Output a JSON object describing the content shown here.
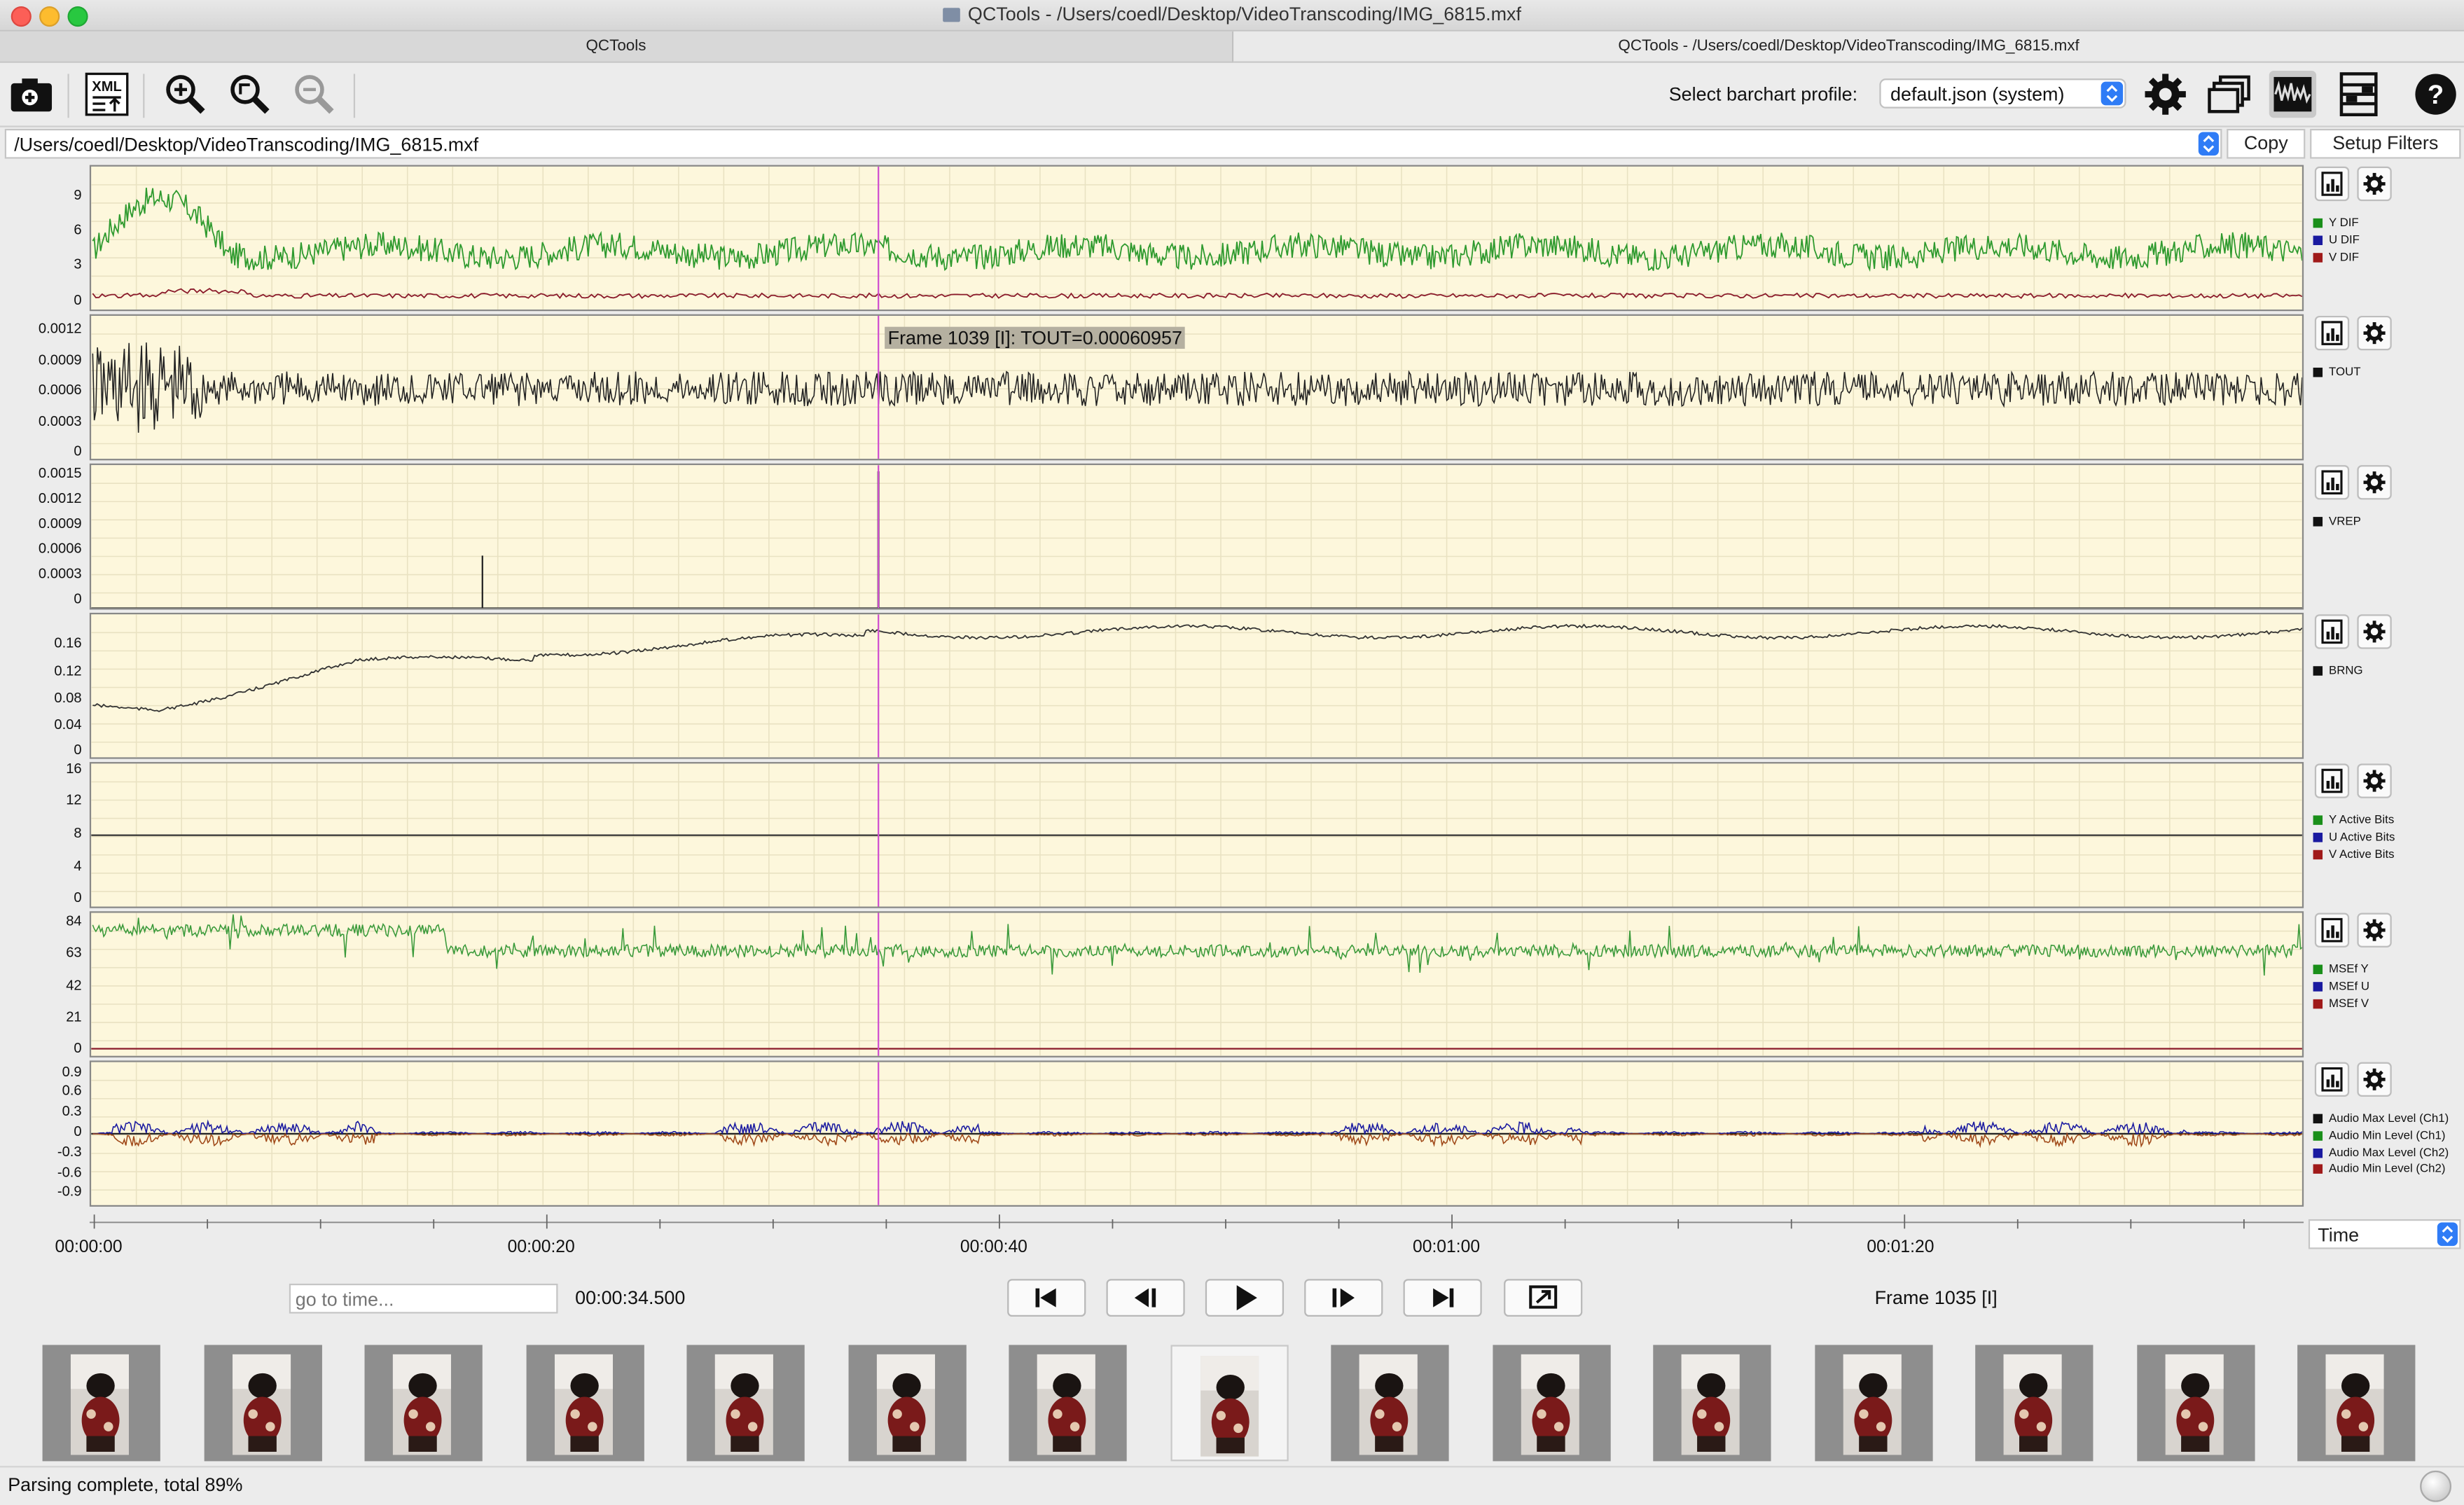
{
  "window": {
    "title": "QCTools - /Users/coedl/Desktop/VideoTranscoding/IMG_6815.mxf"
  },
  "tabs": [
    {
      "label": "QCTools"
    },
    {
      "label": "QCTools - /Users/coedl/Desktop/VideoTranscoding/IMG_6815.mxf"
    }
  ],
  "toolbar": {
    "profile_label": "Select barchart profile:",
    "profile_value": "default.json (system)",
    "icons": [
      "open-file-icon",
      "export-xml-icon",
      "zoom-in-icon",
      "zoom-fit-icon",
      "zoom-out-icon",
      "settings-icon",
      "windows-icon",
      "waveform-icon",
      "panels-icon",
      "help-icon"
    ]
  },
  "path": {
    "value": "/Users/coedl/Desktop/VideoTranscoding/IMG_6815.mxf",
    "copy_label": "Copy",
    "setup_label": "Setup Filters"
  },
  "graphs": [
    {
      "id": "ydif",
      "ticks": [
        "9",
        "6",
        "3",
        "0"
      ],
      "legend": [
        {
          "label": "Y DIF",
          "color": "#1a8f1a"
        },
        {
          "label": "U DIF",
          "color": "#1a1aa0"
        },
        {
          "label": "V DIF",
          "color": "#a01a1a"
        }
      ]
    },
    {
      "id": "tout",
      "ticks": [
        "0.0012",
        "0.0009",
        "0.0006",
        "0.0003",
        "0"
      ],
      "legend": [
        {
          "label": "TOUT",
          "color": "#111111"
        }
      ],
      "tooltip": "Frame 1039 [I]: TOUT=0.00060957"
    },
    {
      "id": "vrep",
      "ticks": [
        "0.0015",
        "0.0012",
        "0.0009",
        "0.0006",
        "0.0003",
        "0"
      ],
      "legend": [
        {
          "label": "VREP",
          "color": "#111111"
        }
      ]
    },
    {
      "id": "brng",
      "ticks": [
        "0.16",
        "0.12",
        "0.08",
        "0.04",
        "0"
      ],
      "legend": [
        {
          "label": "BRNG",
          "color": "#111111"
        }
      ]
    },
    {
      "id": "bits",
      "ticks": [
        "16",
        "12",
        "8",
        "4",
        "0"
      ],
      "legend": [
        {
          "label": "Y Active Bits",
          "color": "#1a8f1a"
        },
        {
          "label": "U Active Bits",
          "color": "#1a1aa0"
        },
        {
          "label": "V Active Bits",
          "color": "#a01a1a"
        }
      ]
    },
    {
      "id": "msef",
      "ticks": [
        "84",
        "63",
        "42",
        "21",
        "0"
      ],
      "legend": [
        {
          "label": "MSEf Y",
          "color": "#1a8f1a"
        },
        {
          "label": "MSEf U",
          "color": "#1a1aa0"
        },
        {
          "label": "MSEf V",
          "color": "#a01a1a"
        }
      ]
    },
    {
      "id": "audio",
      "ticks": [
        "0.9",
        "0.6",
        "0.3",
        "0",
        "-0.3",
        "-0.6",
        "-0.9"
      ],
      "legend": [
        {
          "label": "Audio Max Level (Ch1)",
          "color": "#111111"
        },
        {
          "label": "Audio Min Level (Ch1)",
          "color": "#1a8f1a"
        },
        {
          "label": "Audio Max Level (Ch2)",
          "color": "#1a1aa0"
        },
        {
          "label": "Audio Min Level (Ch2)",
          "color": "#a01a1a"
        }
      ]
    }
  ],
  "timeline": {
    "labels": [
      "00:00:00",
      "00:00:20",
      "00:00:40",
      "00:01:00",
      "00:01:20"
    ],
    "mode": "Time",
    "goto_placeholder": "go to time...",
    "current_time": "00:00:34.500",
    "frame_label": "Frame 1035 [I]",
    "controls": [
      "skip-start-icon",
      "step-back-icon",
      "play-icon",
      "step-forward-icon",
      "skip-end-icon",
      "export-frame-icon"
    ]
  },
  "thumbnails": {
    "count": 15,
    "selected_index": 7
  },
  "status": {
    "text": "Parsing complete, total 89%"
  }
}
